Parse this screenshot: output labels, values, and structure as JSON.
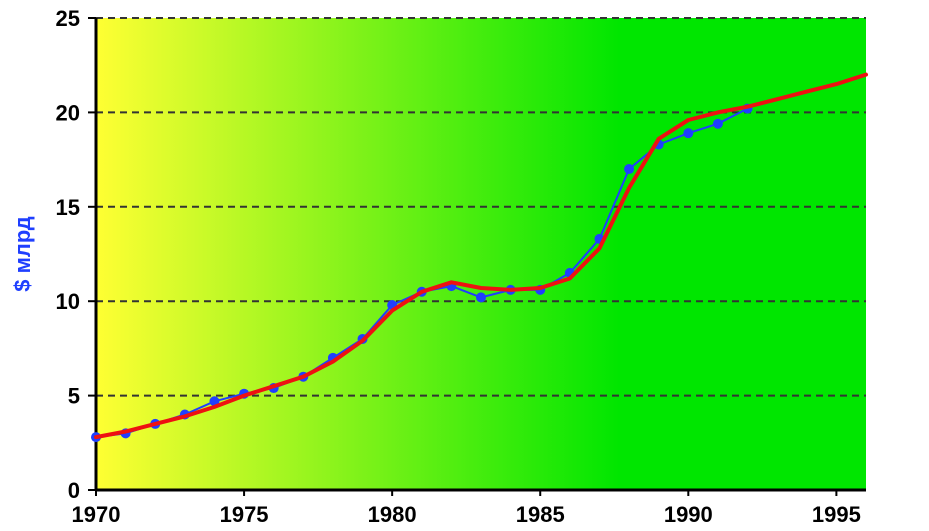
{
  "chart_data": {
    "type": "line",
    "ylabel": "$ млрд",
    "xlim": [
      1970,
      1996
    ],
    "ylim": [
      0,
      25
    ],
    "x_ticks": [
      "1970",
      "1975",
      "1980",
      "1985",
      "1990",
      "1995"
    ],
    "y_ticks": [
      "0",
      "5",
      "10",
      "15",
      "20",
      "25"
    ],
    "grid": "horizontal dashed",
    "background": "gradient yellow to green",
    "series": [
      {
        "color": "#1f3fff",
        "marker": "circle",
        "x": [
          1970,
          1971,
          1972,
          1973,
          1974,
          1975,
          1976,
          1977,
          1978,
          1979,
          1980,
          1981,
          1982,
          1983,
          1984,
          1985,
          1986,
          1987,
          1988,
          1989,
          1990,
          1991,
          1992
        ],
        "y": [
          2.8,
          3.0,
          3.5,
          4.0,
          4.7,
          5.1,
          5.4,
          6.0,
          7.0,
          8.0,
          9.8,
          10.5,
          10.8,
          10.2,
          10.6,
          10.6,
          11.5,
          13.3,
          17.0,
          18.3,
          18.9,
          19.4,
          20.2
        ]
      },
      {
        "color": "#ee1111",
        "marker": "none",
        "x": [
          1970,
          1971,
          1972,
          1973,
          1974,
          1975,
          1976,
          1977,
          1978,
          1979,
          1980,
          1981,
          1982,
          1983,
          1984,
          1985,
          1986,
          1987,
          1988,
          1989,
          1990,
          1991,
          1992,
          1993,
          1994,
          1995,
          1996
        ],
        "y": [
          2.8,
          3.1,
          3.5,
          3.9,
          4.4,
          5.0,
          5.5,
          6.0,
          6.8,
          7.9,
          9.5,
          10.5,
          11.0,
          10.7,
          10.6,
          10.7,
          11.2,
          12.8,
          16.0,
          18.6,
          19.6,
          20.0,
          20.3,
          20.7,
          21.1,
          21.5,
          22.0
        ]
      }
    ],
    "colors": {
      "bg_left": "#ffff33",
      "bg_right": "#00e600",
      "grid": "#333333",
      "ylabel": "#1f3fff"
    }
  }
}
